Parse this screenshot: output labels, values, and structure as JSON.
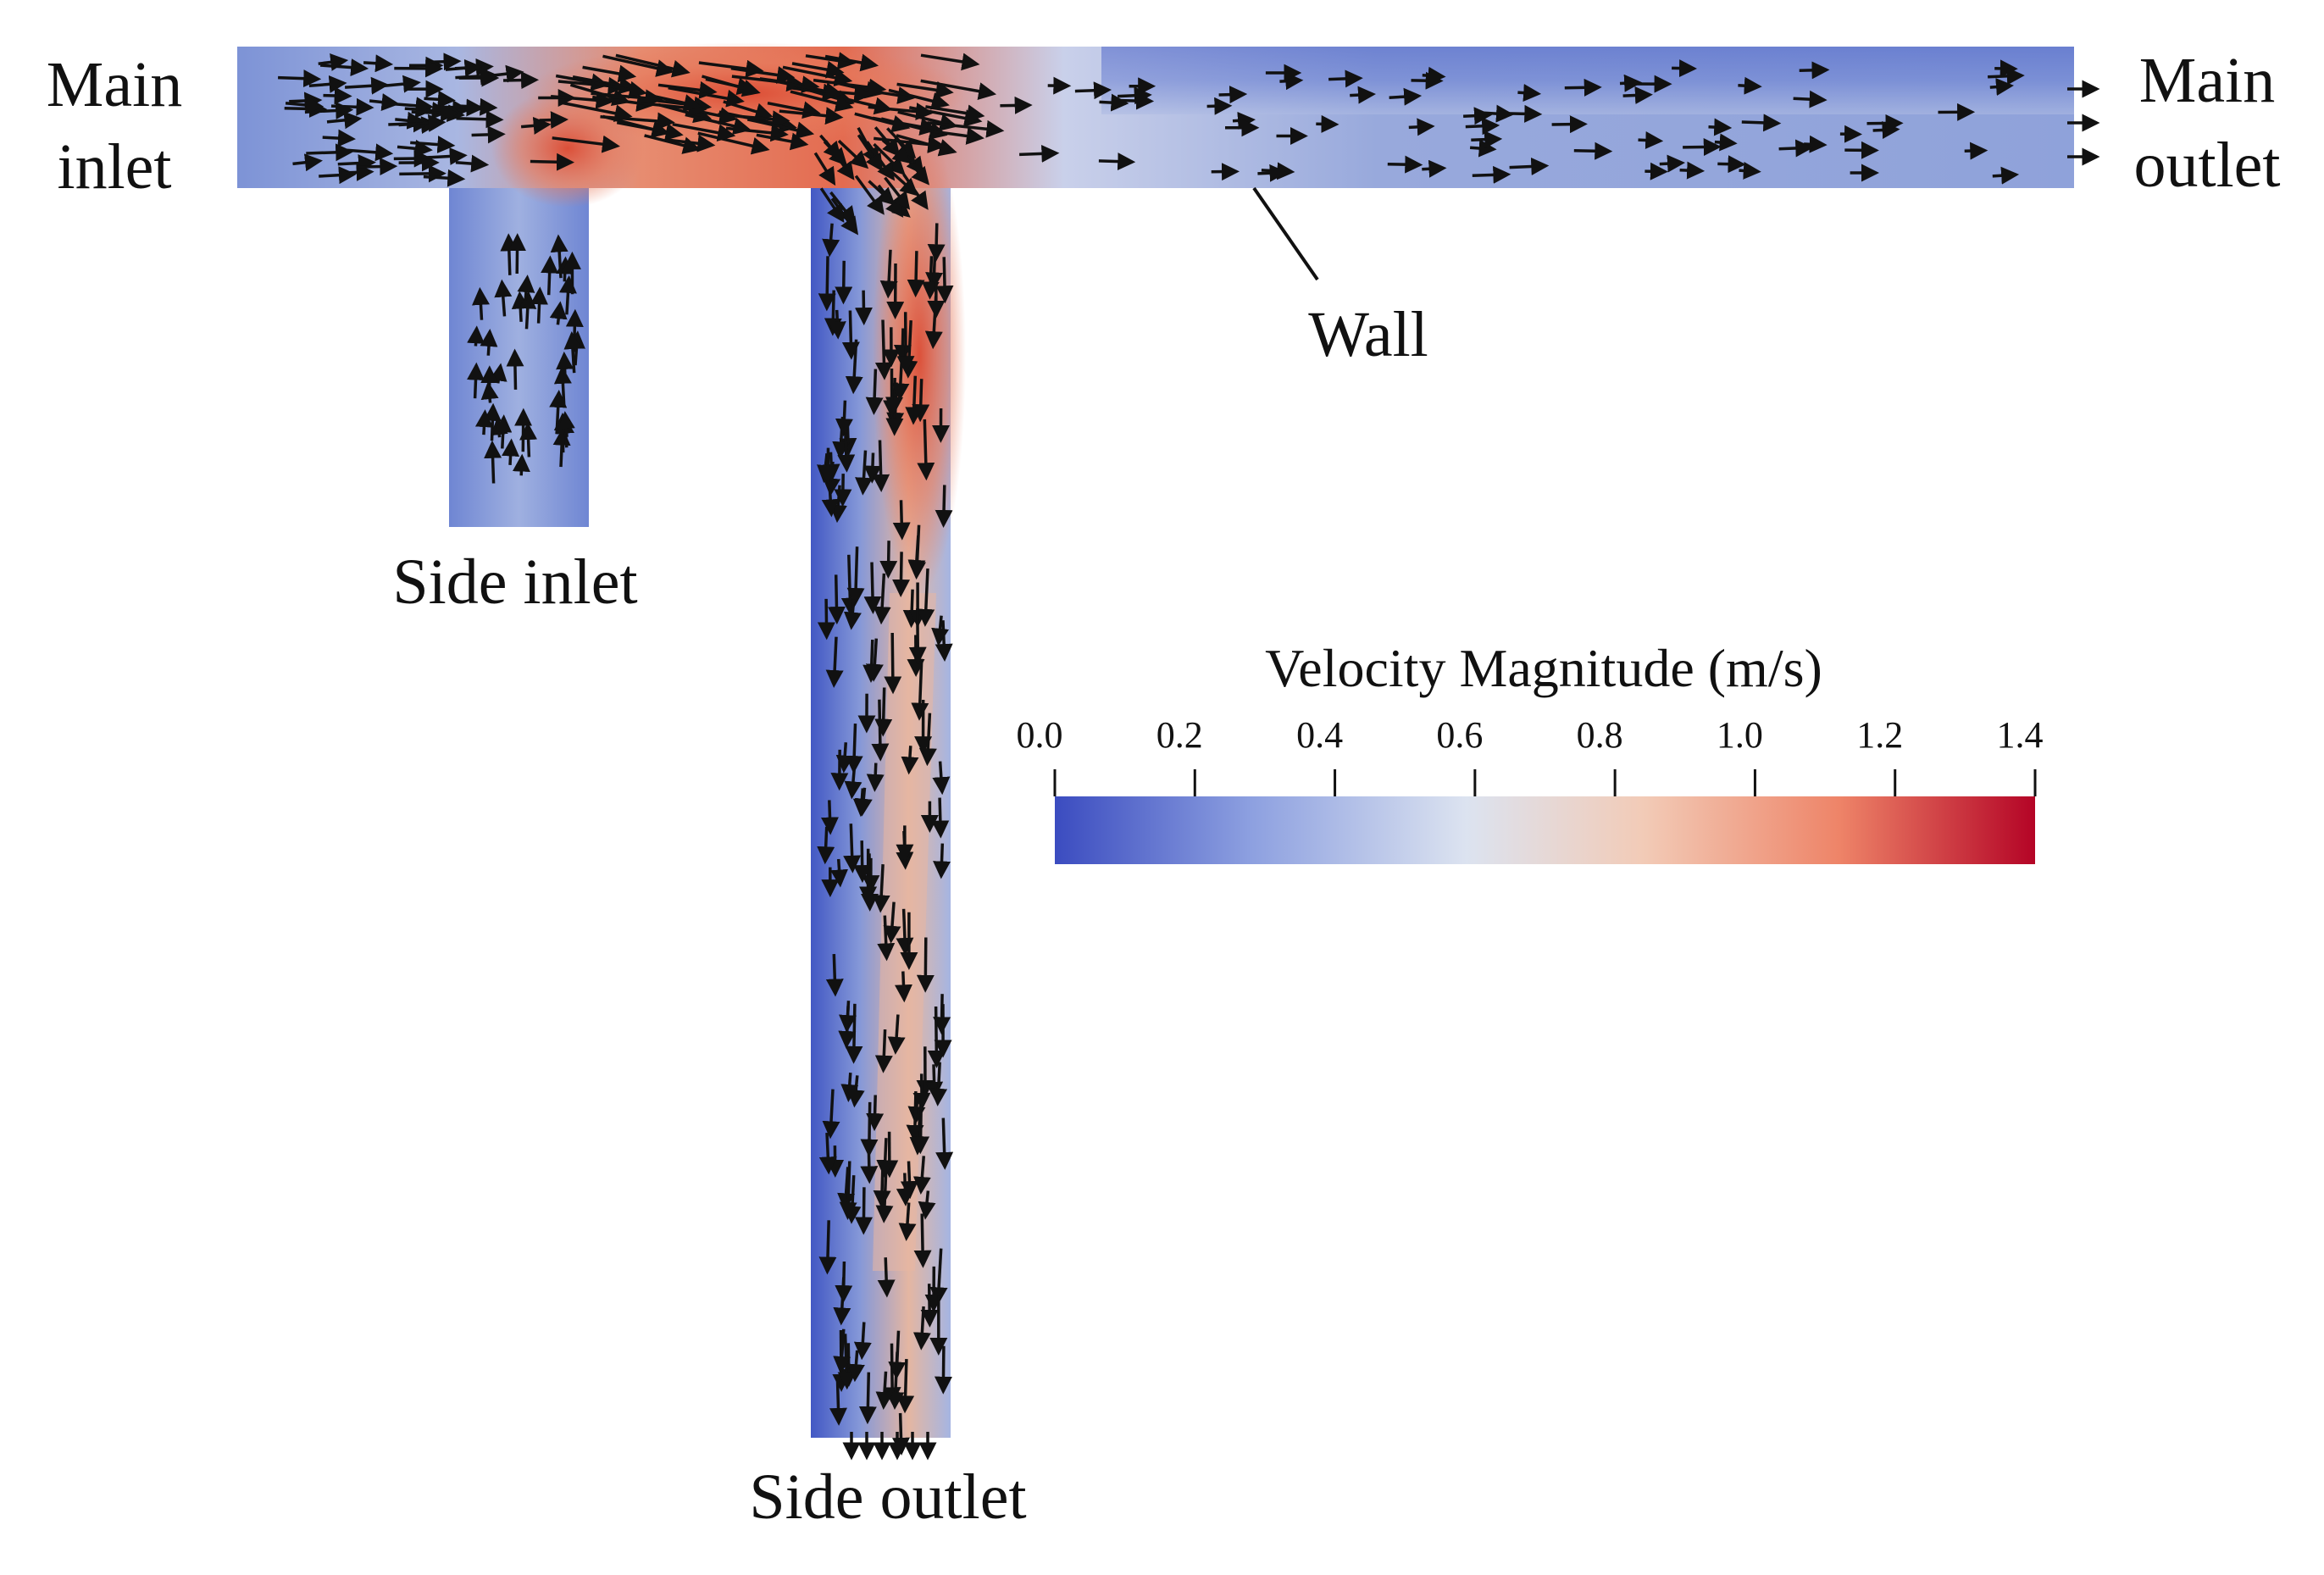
{
  "labels": {
    "main_inlet": [
      "Main",
      "inlet"
    ],
    "main_outlet": [
      "Main",
      "outlet"
    ],
    "side_inlet": "Side inlet",
    "side_outlet": "Side outlet",
    "wall": "Wall"
  },
  "colorbar": {
    "title": "Velocity Magnitude (m/s)",
    "min": 0.0,
    "max": 1.4,
    "ticks": [
      "0.0",
      "0.2",
      "0.4",
      "0.6",
      "0.8",
      "1.0",
      "1.2",
      "1.4"
    ],
    "colormap": [
      "#3b4cc0",
      "#8da0e0",
      "#dce3f0",
      "#f2cbb7",
      "#ee8468",
      "#b40426"
    ]
  },
  "colors": {
    "low_velocity": "#4a66cc",
    "mid_velocity": "#c9d3ea",
    "high_velocity": "#d8412f",
    "arrow": "#111111"
  }
}
